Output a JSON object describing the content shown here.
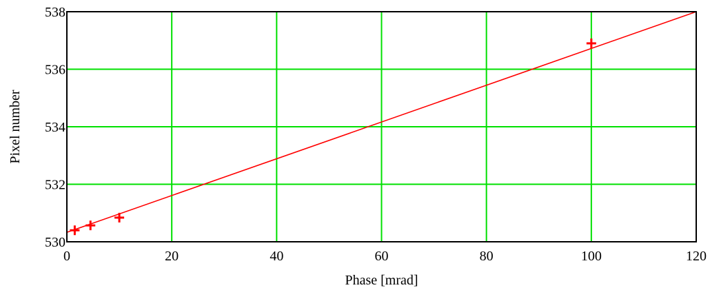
{
  "chart_data": {
    "type": "line",
    "title": "",
    "xlabel": "Phase [mrad]",
    "ylabel": "Pixel number",
    "xlim": [
      0,
      120
    ],
    "ylim": [
      530,
      538
    ],
    "x_ticks": [
      0,
      20,
      40,
      60,
      80,
      100,
      120
    ],
    "y_ticks": [
      530,
      532,
      534,
      536,
      538
    ],
    "grid": true,
    "legend": "none",
    "series": [
      {
        "kind": "scatter",
        "marker": "+",
        "color": "#ff0000",
        "x": [
          1.5,
          4.5,
          10,
          100
        ],
        "y": [
          530.4,
          530.57,
          530.84,
          536.9
        ]
      },
      {
        "kind": "line",
        "color": "#ff0000",
        "x": [
          0,
          120
        ],
        "y": [
          530.33,
          538.0
        ]
      }
    ],
    "grid_color": "#00e000"
  }
}
